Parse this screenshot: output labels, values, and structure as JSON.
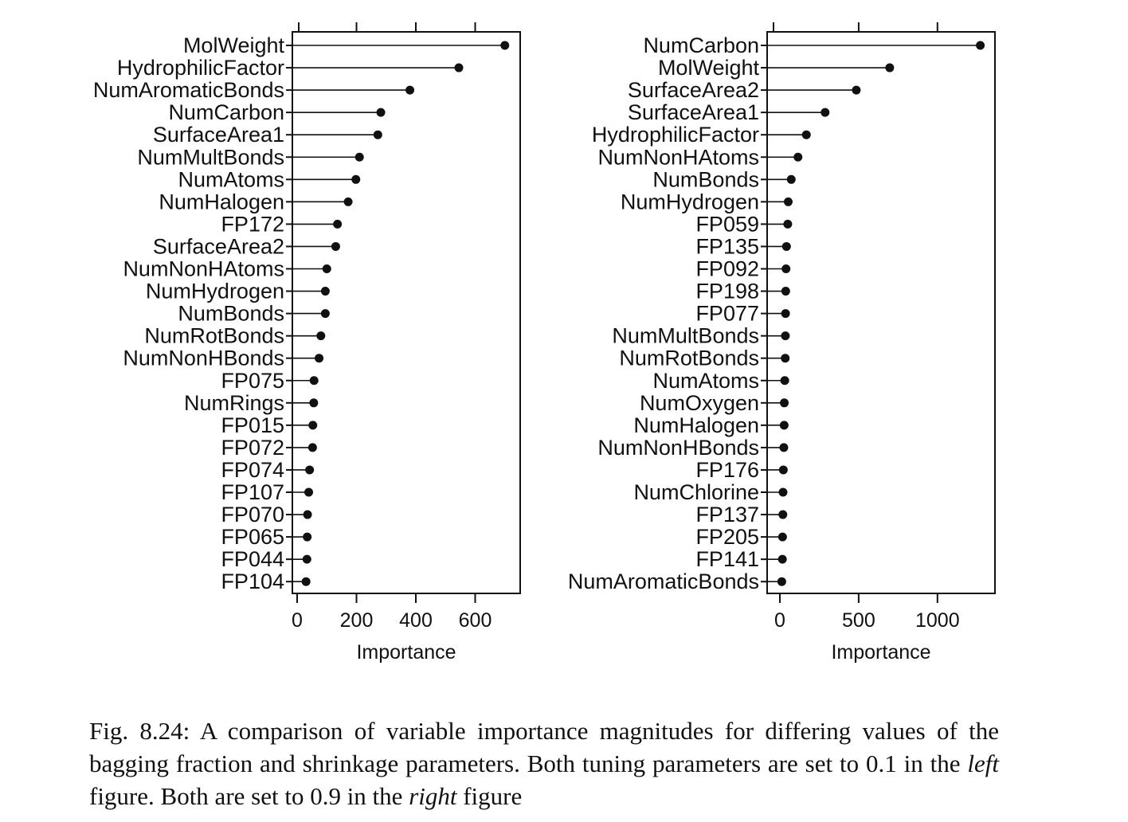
{
  "chart_data": [
    {
      "type": "dot",
      "xlabel": "Importance",
      "xlim": [
        0,
        750
      ],
      "xticks": [
        0,
        200,
        400,
        600
      ],
      "top_ticks": [
        200,
        400,
        600
      ],
      "categories": [
        "MolWeight",
        "HydrophilicFactor",
        "NumAromaticBonds",
        "NumCarbon",
        "SurfaceArea1",
        "NumMultBonds",
        "NumAtoms",
        "NumHalogen",
        "FP172",
        "SurfaceArea2",
        "NumNonHAtoms",
        "NumHydrogen",
        "NumBonds",
        "NumRotBonds",
        "NumNonHBonds",
        "FP075",
        "NumRings",
        "FP015",
        "FP072",
        "FP074",
        "FP107",
        "FP070",
        "FP065",
        "FP044",
        "FP104"
      ],
      "values": [
        700,
        545,
        380,
        282,
        272,
        210,
        198,
        172,
        136,
        130,
        100,
        95,
        95,
        80,
        74,
        57,
        56,
        53,
        52,
        42,
        39,
        35,
        34,
        33,
        30
      ]
    },
    {
      "type": "dot",
      "xlabel": "Importance",
      "xlim": [
        0,
        1360
      ],
      "xticks": [
        0,
        500,
        1000
      ],
      "top_ticks": [
        500,
        1000
      ],
      "categories": [
        "NumCarbon",
        "MolWeight",
        "SurfaceArea2",
        "SurfaceArea1",
        "HydrophilicFactor",
        "NumNonHAtoms",
        "NumBonds",
        "NumHydrogen",
        "FP059",
        "FP135",
        "FP092",
        "FP198",
        "FP077",
        "NumMultBonds",
        "NumRotBonds",
        "NumAtoms",
        "NumOxygen",
        "NumHalogen",
        "NumNonHBonds",
        "FP176",
        "NumChlorine",
        "FP137",
        "FP205",
        "FP141",
        "NumAromaticBonds"
      ],
      "values": [
        1272,
        697,
        485,
        287,
        168,
        115,
        72,
        53,
        50,
        42,
        39,
        37,
        36,
        35,
        34,
        31,
        28,
        27,
        25,
        22,
        20,
        19,
        17,
        16,
        12
      ]
    }
  ],
  "caption": {
    "prefix": "Fig. 8.24: A comparison of variable importance magnitudes for differing values of the bagging fraction and shrinkage parameters. Both tuning parameters are set to 0.1 in the ",
    "left_word": "left",
    "middle": " figure. Both are set to 0.9 in the ",
    "right_word": "right",
    "suffix": " figure"
  }
}
